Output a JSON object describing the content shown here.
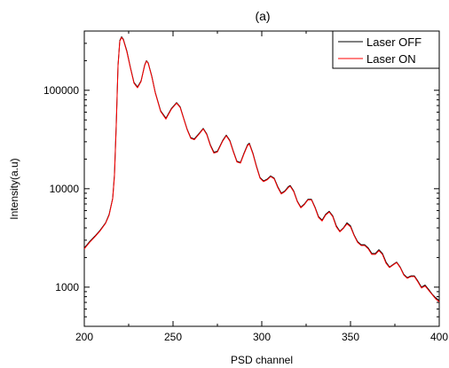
{
  "chart_data": {
    "type": "line",
    "title": "(a)",
    "xlabel": "PSD channel",
    "ylabel": "Intensity(a.u)",
    "xlim": [
      200,
      400
    ],
    "ylim": [
      400,
      400000
    ],
    "yscale": "log",
    "x_ticks": [
      200,
      250,
      300,
      350,
      400
    ],
    "x_tick_labels": [
      "200",
      "250",
      "300",
      "350",
      "400"
    ],
    "y_ticks": [
      1000,
      10000,
      100000
    ],
    "y_tick_labels": [
      "1000",
      "10000",
      "100000"
    ],
    "grid": false,
    "legend_position": "top-right",
    "series": [
      {
        "name": "Laser OFF",
        "color": "#000000",
        "points": [
          [
            200,
            2500
          ],
          [
            203,
            2900
          ],
          [
            206,
            3300
          ],
          [
            209,
            3800
          ],
          [
            212,
            4500
          ],
          [
            214,
            5500
          ],
          [
            216,
            8000
          ],
          [
            217,
            14000
          ],
          [
            218,
            45000
          ],
          [
            219,
            180000
          ],
          [
            220,
            320000
          ],
          [
            221,
            350000
          ],
          [
            222,
            330000
          ],
          [
            224,
            250000
          ],
          [
            226,
            170000
          ],
          [
            228,
            120000
          ],
          [
            230,
            108000
          ],
          [
            232,
            125000
          ],
          [
            234,
            180000
          ],
          [
            235,
            200000
          ],
          [
            236,
            190000
          ],
          [
            238,
            140000
          ],
          [
            240,
            95000
          ],
          [
            243,
            62000
          ],
          [
            246,
            52000
          ],
          [
            249,
            65000
          ],
          [
            252,
            75000
          ],
          [
            254,
            68000
          ],
          [
            256,
            52000
          ],
          [
            258,
            40000
          ],
          [
            260,
            33000
          ],
          [
            262,
            32000
          ],
          [
            265,
            37000
          ],
          [
            267,
            41000
          ],
          [
            269,
            36000
          ],
          [
            271,
            28000
          ],
          [
            273,
            23500
          ],
          [
            275,
            24000
          ],
          [
            278,
            31000
          ],
          [
            280,
            35000
          ],
          [
            282,
            31000
          ],
          [
            284,
            24000
          ],
          [
            286,
            19000
          ],
          [
            288,
            18500
          ],
          [
            290,
            23000
          ],
          [
            292,
            28000
          ],
          [
            293,
            29000
          ],
          [
            295,
            23000
          ],
          [
            297,
            17000
          ],
          [
            299,
            13000
          ],
          [
            301,
            12000
          ],
          [
            303,
            12500
          ],
          [
            305,
            13500
          ],
          [
            307,
            12800
          ],
          [
            309,
            10500
          ],
          [
            311,
            9000
          ],
          [
            313,
            9500
          ],
          [
            315,
            10500
          ],
          [
            316,
            10800
          ],
          [
            318,
            9500
          ],
          [
            320,
            7500
          ],
          [
            322,
            6500
          ],
          [
            324,
            7000
          ],
          [
            326,
            7800
          ],
          [
            328,
            7800
          ],
          [
            330,
            6500
          ],
          [
            332,
            5200
          ],
          [
            334,
            4800
          ],
          [
            336,
            5500
          ],
          [
            338,
            5900
          ],
          [
            340,
            5300
          ],
          [
            342,
            4200
          ],
          [
            344,
            3700
          ],
          [
            346,
            4000
          ],
          [
            348,
            4500
          ],
          [
            350,
            4200
          ],
          [
            352,
            3400
          ],
          [
            354,
            2900
          ],
          [
            356,
            2700
          ],
          [
            358,
            2700
          ],
          [
            360,
            2500
          ],
          [
            362,
            2200
          ],
          [
            364,
            2200
          ],
          [
            366,
            2400
          ],
          [
            368,
            2200
          ],
          [
            370,
            1800
          ],
          [
            372,
            1600
          ],
          [
            374,
            1700
          ],
          [
            376,
            1800
          ],
          [
            378,
            1600
          ],
          [
            380,
            1350
          ],
          [
            382,
            1250
          ],
          [
            384,
            1300
          ],
          [
            386,
            1300
          ],
          [
            388,
            1150
          ],
          [
            390,
            1000
          ],
          [
            392,
            1050
          ],
          [
            394,
            950
          ],
          [
            396,
            850
          ],
          [
            398,
            780
          ],
          [
            400,
            730
          ]
        ]
      },
      {
        "name": "Laser ON",
        "color": "#ff0000",
        "points": [
          [
            200,
            2450
          ],
          [
            203,
            2850
          ],
          [
            206,
            3250
          ],
          [
            209,
            3750
          ],
          [
            212,
            4450
          ],
          [
            214,
            5400
          ],
          [
            216,
            7900
          ],
          [
            217,
            13500
          ],
          [
            218,
            43000
          ],
          [
            219,
            175000
          ],
          [
            220,
            315000
          ],
          [
            221,
            345000
          ],
          [
            222,
            325000
          ],
          [
            224,
            245000
          ],
          [
            226,
            168000
          ],
          [
            228,
            118000
          ],
          [
            230,
            106000
          ],
          [
            232,
            123000
          ],
          [
            234,
            178000
          ],
          [
            235,
            198000
          ],
          [
            236,
            188000
          ],
          [
            238,
            138000
          ],
          [
            240,
            94000
          ],
          [
            243,
            61000
          ],
          [
            246,
            51000
          ],
          [
            249,
            64000
          ],
          [
            252,
            74000
          ],
          [
            254,
            67000
          ],
          [
            256,
            51500
          ],
          [
            258,
            39500
          ],
          [
            260,
            32500
          ],
          [
            262,
            31500
          ],
          [
            265,
            36500
          ],
          [
            267,
            40500
          ],
          [
            269,
            35500
          ],
          [
            271,
            27500
          ],
          [
            273,
            23000
          ],
          [
            275,
            23600
          ],
          [
            278,
            30500
          ],
          [
            280,
            34500
          ],
          [
            282,
            30500
          ],
          [
            284,
            23600
          ],
          [
            286,
            18700
          ],
          [
            288,
            18200
          ],
          [
            290,
            22600
          ],
          [
            292,
            27500
          ],
          [
            293,
            28500
          ],
          [
            295,
            22600
          ],
          [
            297,
            16700
          ],
          [
            299,
            12800
          ],
          [
            301,
            11800
          ],
          [
            303,
            12300
          ],
          [
            305,
            13300
          ],
          [
            307,
            12600
          ],
          [
            309,
            10300
          ],
          [
            311,
            8850
          ],
          [
            313,
            9350
          ],
          [
            315,
            10300
          ],
          [
            316,
            10600
          ],
          [
            318,
            9350
          ],
          [
            320,
            7400
          ],
          [
            322,
            6400
          ],
          [
            324,
            6900
          ],
          [
            326,
            7700
          ],
          [
            328,
            7700
          ],
          [
            330,
            6400
          ],
          [
            332,
            5100
          ],
          [
            334,
            4700
          ],
          [
            336,
            5400
          ],
          [
            338,
            5800
          ],
          [
            340,
            5200
          ],
          [
            342,
            4100
          ],
          [
            344,
            3650
          ],
          [
            346,
            3950
          ],
          [
            348,
            4400
          ],
          [
            350,
            4100
          ],
          [
            352,
            3350
          ],
          [
            354,
            2850
          ],
          [
            356,
            2650
          ],
          [
            358,
            2650
          ],
          [
            360,
            2450
          ],
          [
            362,
            2150
          ],
          [
            364,
            2150
          ],
          [
            366,
            2350
          ],
          [
            368,
            2150
          ],
          [
            370,
            1750
          ],
          [
            372,
            1580
          ],
          [
            374,
            1680
          ],
          [
            376,
            1780
          ],
          [
            378,
            1580
          ],
          [
            380,
            1330
          ],
          [
            382,
            1230
          ],
          [
            384,
            1280
          ],
          [
            386,
            1280
          ],
          [
            388,
            1130
          ],
          [
            390,
            980
          ],
          [
            392,
            1030
          ],
          [
            394,
            930
          ],
          [
            396,
            840
          ],
          [
            398,
            760
          ],
          [
            400,
            710
          ]
        ]
      }
    ]
  }
}
